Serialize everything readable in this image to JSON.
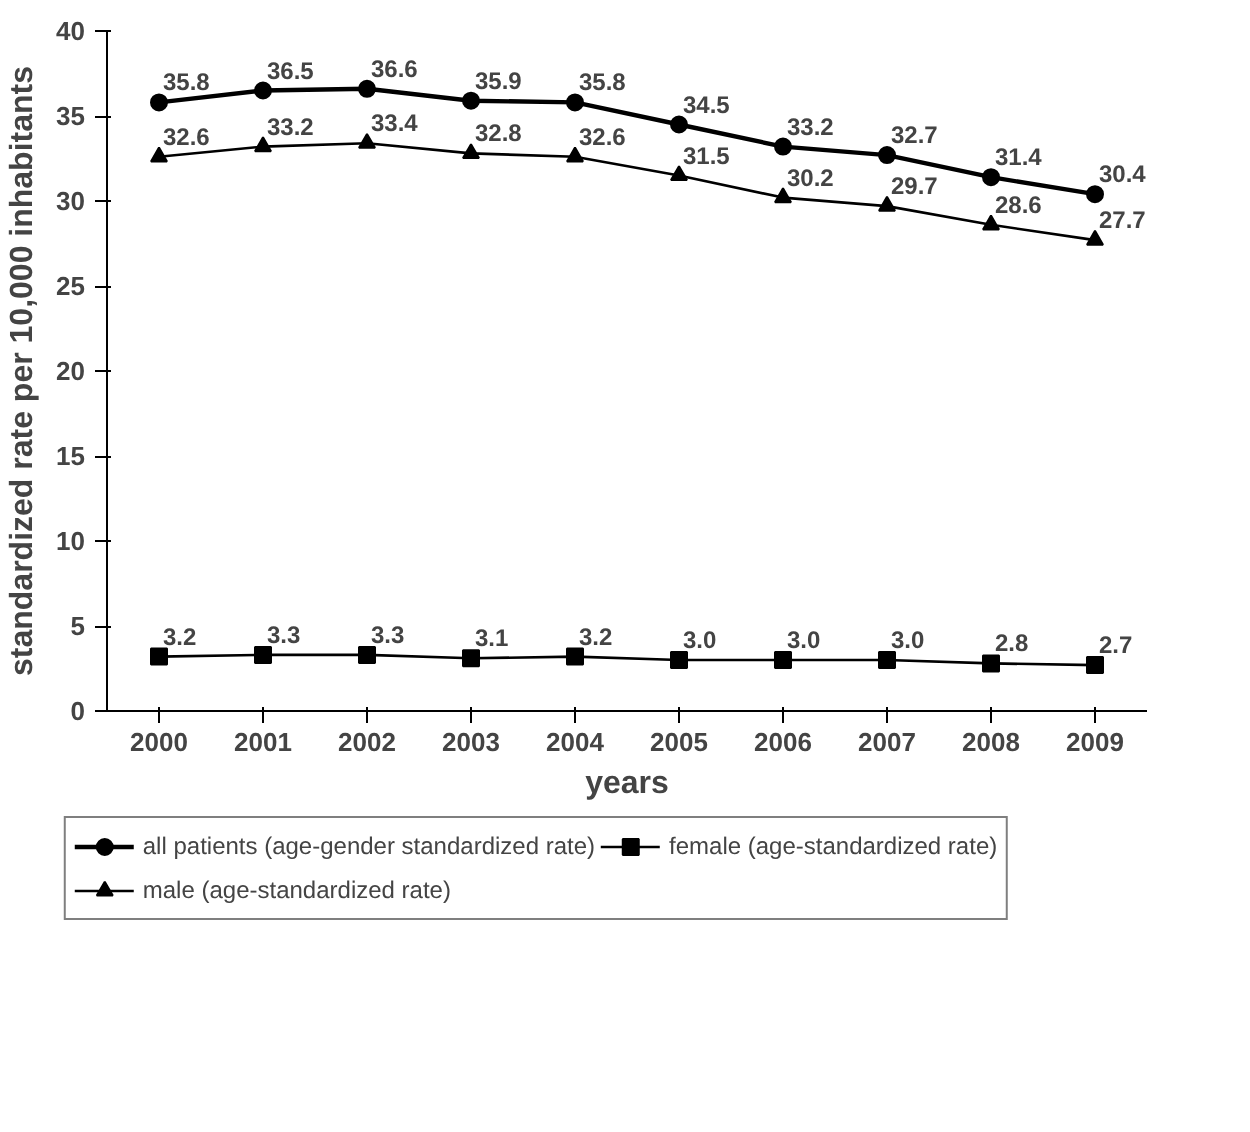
{
  "chart_data": {
    "type": "line",
    "xlabel": "years",
    "ylabel": "standardized rate per 10,000 inhabitants",
    "categories": [
      "2000",
      "2001",
      "2002",
      "2003",
      "2004",
      "2005",
      "2006",
      "2007",
      "2008",
      "2009"
    ],
    "ylim": [
      0,
      40
    ],
    "yticks": [
      0,
      5,
      10,
      15,
      20,
      25,
      30,
      35,
      40
    ],
    "grid": false,
    "legend": "bottom",
    "line_style": "solid",
    "series": [
      {
        "name": "all patients (age-gender standardized rate)",
        "color": "#000000",
        "marker": "circle",
        "values": [
          35.8,
          36.5,
          36.6,
          35.9,
          35.8,
          34.5,
          33.2,
          32.7,
          31.4,
          30.4
        ],
        "value_labels": [
          "35.8",
          "36.5",
          "36.6",
          "35.9",
          "35.8",
          "34.5",
          "33.2",
          "32.7",
          "31.4",
          "30.4"
        ]
      },
      {
        "name": "male (age-standardized rate)",
        "color": "#000000",
        "marker": "triangle",
        "values": [
          32.6,
          33.2,
          33.4,
          32.8,
          32.6,
          31.5,
          30.2,
          29.7,
          28.6,
          27.7
        ],
        "value_labels": [
          "32.6",
          "33.2",
          "33.4",
          "32.8",
          "32.6",
          "31.5",
          "30.2",
          "29.7",
          "28.6",
          "27.7"
        ]
      },
      {
        "name": "female (age-standardized rate)",
        "color": "#000000",
        "marker": "square",
        "values": [
          3.2,
          3.3,
          3.3,
          3.1,
          3.2,
          3.0,
          3.0,
          3.0,
          2.8,
          2.7
        ],
        "value_labels": [
          "3.2",
          "3.3",
          "3.3",
          "3.1",
          "3.2",
          "3.0",
          "3.0",
          "3.0",
          "2.8",
          "2.7"
        ]
      }
    ]
  }
}
